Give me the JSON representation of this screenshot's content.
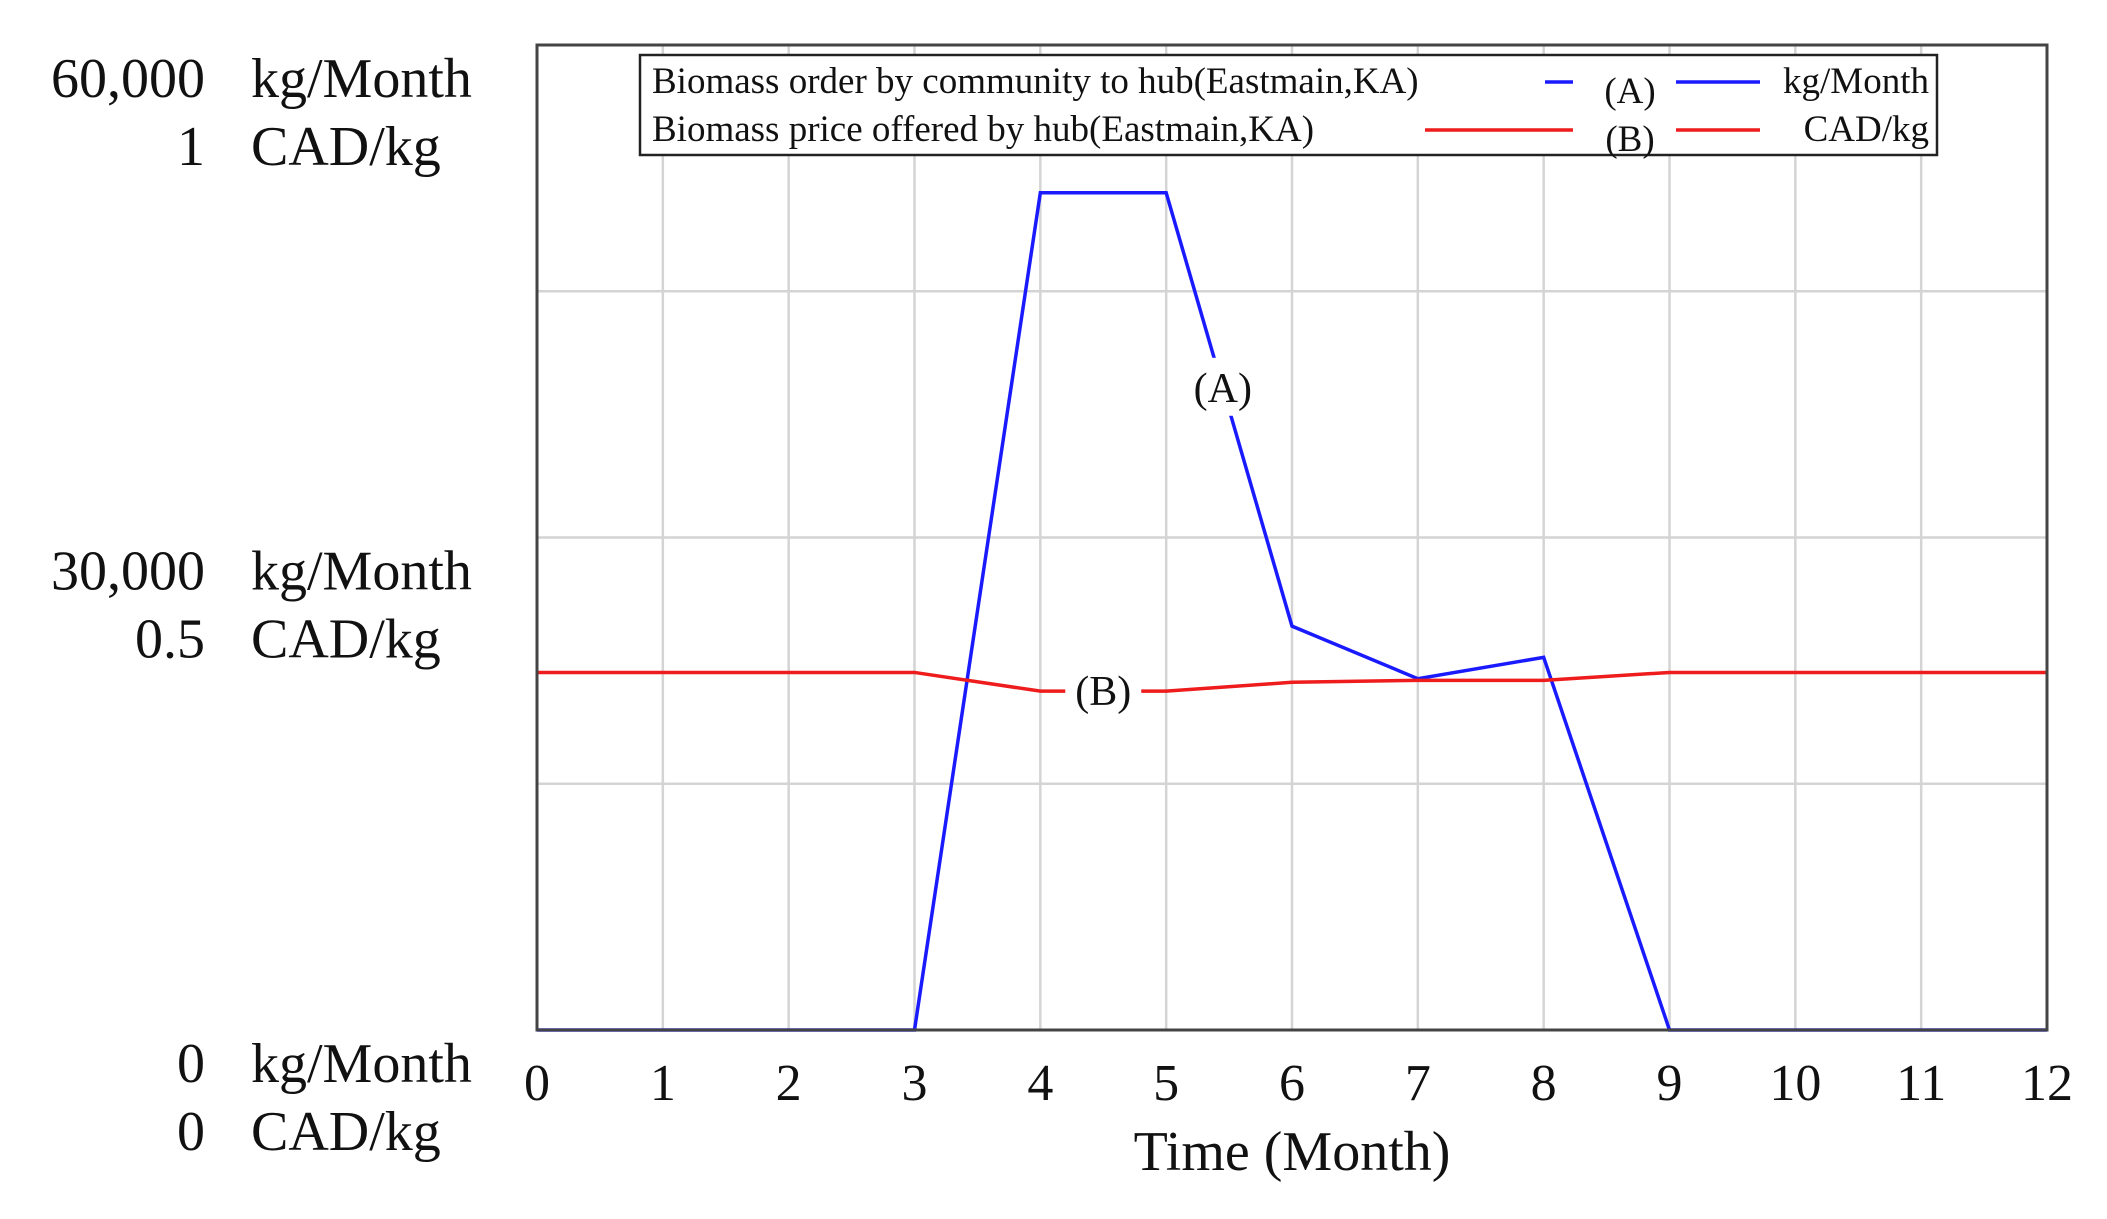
{
  "chart_data": {
    "type": "line",
    "xlabel": "Time (Month)",
    "x": [
      0,
      1,
      2,
      3,
      4,
      5,
      6,
      7,
      8,
      9,
      10,
      11,
      12
    ],
    "xlim": [
      0,
      12
    ],
    "x_ticks": [
      "0",
      "1",
      "2",
      "3",
      "4",
      "5",
      "6",
      "7",
      "8",
      "9",
      "10",
      "11",
      "12"
    ],
    "grid": true,
    "legend_position": "top",
    "axes": {
      "left_1": {
        "unit": "kg/Month",
        "ylim": [
          0,
          60000
        ],
        "ticks": [
          "60,000",
          "30,000",
          "0"
        ]
      },
      "left_2": {
        "unit": "CAD/kg",
        "ylim": [
          0,
          1
        ],
        "ticks": [
          "1",
          "0.5",
          "0"
        ]
      }
    },
    "series": [
      {
        "name": "Biomass order by community to hub(Eastmain,KA)",
        "marker": "(A)",
        "unit": "kg/Month",
        "axis": "left_1",
        "color": "#1a1aff",
        "values": [
          0,
          0,
          0,
          0,
          51000,
          51000,
          24600,
          21400,
          22700,
          0,
          0,
          0,
          0
        ]
      },
      {
        "name": "Biomass price offered by hub(Eastmain,KA)",
        "marker": "(B)",
        "unit": "CAD/kg",
        "axis": "left_2",
        "color": "#ee1c1c",
        "values": [
          0.363,
          0.363,
          0.363,
          0.363,
          0.344,
          0.344,
          0.353,
          0.355,
          0.355,
          0.363,
          0.363,
          0.363,
          0.363
        ]
      }
    ]
  }
}
